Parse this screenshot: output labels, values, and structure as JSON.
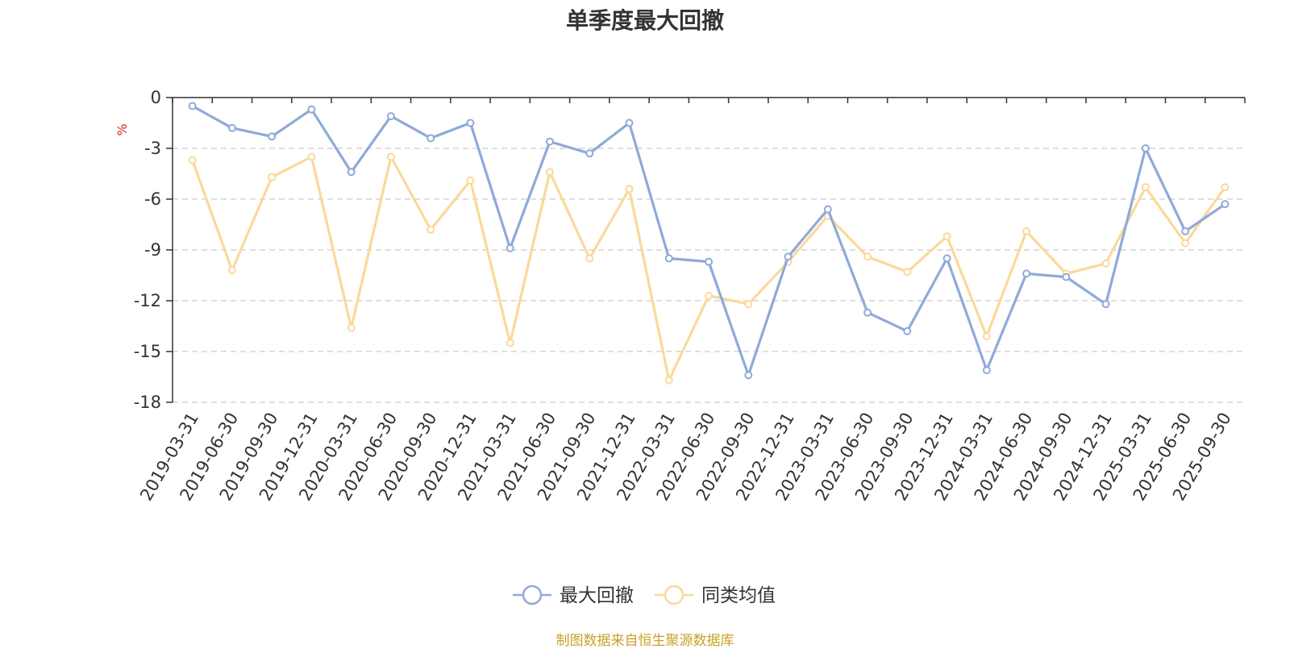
{
  "chart_data": {
    "type": "line",
    "title": "单季度最大回撤",
    "ylabel": "%",
    "ylim": [
      -18,
      0
    ],
    "yticks": [
      "0",
      "-3",
      "-6",
      "-9",
      "-12",
      "-15",
      "-18"
    ],
    "grid": true,
    "legend_position": "bottom-center",
    "categories": [
      "2019-03-31",
      "2019-06-30",
      "2019-09-30",
      "2019-12-31",
      "2020-03-31",
      "2020-06-30",
      "2020-09-30",
      "2020-12-31",
      "2021-03-31",
      "2021-06-30",
      "2021-09-30",
      "2021-12-31",
      "2022-03-31",
      "2022-06-30",
      "2022-09-30",
      "2022-12-31",
      "2023-03-31",
      "2023-06-30",
      "2023-09-30",
      "2023-12-31",
      "2024-03-31",
      "2024-06-30",
      "2024-09-30",
      "2024-12-31",
      "2025-03-31",
      "2025-06-30",
      "2025-09-30"
    ],
    "series": [
      {
        "name": "最大回撤",
        "color": "#8eaad9",
        "values": [
          -0.5,
          -1.8,
          -2.3,
          -0.7,
          -4.4,
          -1.1,
          -2.4,
          -1.5,
          -8.9,
          -2.6,
          -3.3,
          -1.5,
          -9.5,
          -9.7,
          -16.4,
          -9.4,
          -6.6,
          -12.7,
          -13.8,
          -9.5,
          -16.1,
          -10.4,
          -10.6,
          -12.2,
          -3.0,
          -7.9,
          -6.3
        ]
      },
      {
        "name": "同类均值",
        "color": "#fad99a",
        "values": [
          -3.7,
          -10.2,
          -4.7,
          -3.5,
          -13.6,
          -3.5,
          -7.8,
          -4.9,
          -14.5,
          -4.4,
          -9.5,
          -5.4,
          -16.7,
          -11.7,
          -12.2,
          -9.7,
          -7.0,
          -9.4,
          -10.3,
          -8.2,
          -14.1,
          -7.9,
          -10.4,
          -9.8,
          -5.3,
          -8.6,
          -5.3
        ]
      }
    ],
    "source_note": "制图数据来自恒生聚源数据库"
  },
  "colors": {
    "axis": "#333333",
    "grid": "#cccccc",
    "unit_label": "#e02020",
    "source_note": "#c9a227"
  }
}
